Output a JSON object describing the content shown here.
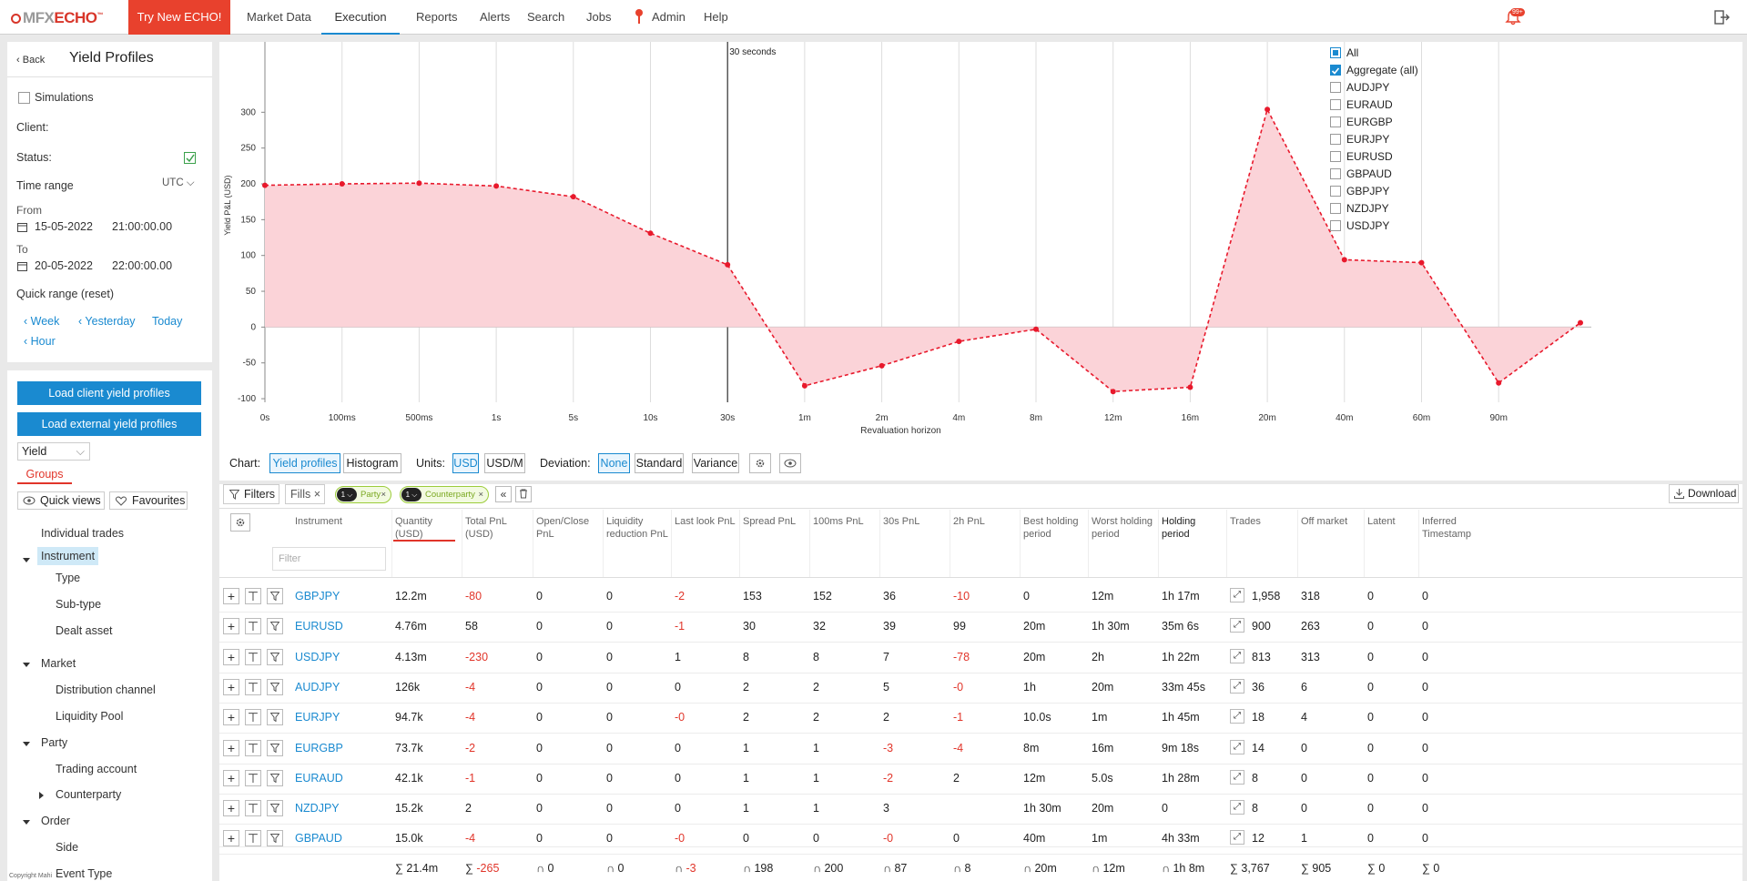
{
  "app": {
    "logo_prefix": "MFX",
    "logo_name": "ECHO",
    "logo_tm": "™"
  },
  "topnav": {
    "try_new": "Try New ECHO!",
    "items": [
      "Market Data",
      "Execution",
      "Reports",
      "Alerts",
      "Search",
      "Jobs",
      "Admin",
      "Help"
    ],
    "active": "Execution",
    "notification_badge": "99+"
  },
  "sidebar": {
    "back": "Back",
    "title": "Yield Profiles",
    "simulations": "Simulations",
    "client": "Client:",
    "status": "Status:",
    "time_range": "Time range",
    "timezone": "UTC",
    "from_label": "From",
    "from_date": "15-05-2022",
    "from_time": "21:00:00.00",
    "to_label": "To",
    "to_date": "20-05-2022",
    "to_time": "22:00:00.00",
    "quick_range": "Quick range (reset)",
    "quick_links": [
      "Week",
      "Yesterday",
      "Today",
      "Hour"
    ],
    "load_client": "Load client yield profiles",
    "load_external": "Load external yield profiles",
    "mode_select": "Yield",
    "groups_tab": "Groups",
    "quick_views": "Quick views",
    "favourites": "Favourites",
    "tree": {
      "individual_trades": "Individual trades",
      "instrument": "Instrument",
      "type": "Type",
      "sub_type": "Sub-type",
      "dealt_asset": "Dealt asset",
      "market": "Market",
      "distribution_channel": "Distribution channel",
      "liquidity_pool": "Liquidity Pool",
      "party": "Party",
      "trading_account": "Trading account",
      "counterparty": "Counterparty",
      "order": "Order",
      "side": "Side",
      "event_type": "Event Type"
    },
    "copyright": "Copyright Mahi"
  },
  "chart_toolbar": {
    "chart_label": "Chart:",
    "yield_profiles": "Yield profiles",
    "histogram": "Histogram",
    "units_label": "Units:",
    "usd": "USD",
    "usd_m": "USD/M",
    "deviation_label": "Deviation:",
    "none": "None",
    "standard": "Standard",
    "variance": "Variance"
  },
  "chart_data": {
    "type": "area",
    "ylabel": "Yield P&L (USD)",
    "xlabel": "Revaluation horizon",
    "categories": [
      "0s",
      "100ms",
      "500ms",
      "1s",
      "5s",
      "10s",
      "30s",
      "1m",
      "2m",
      "4m",
      "8m",
      "12m",
      "16m",
      "20m",
      "40m",
      "60m",
      "90m"
    ],
    "yticks": [
      300,
      250,
      200,
      150,
      100,
      50,
      0,
      -50,
      -100
    ],
    "ylim": [
      -100,
      300
    ],
    "marker_label": "30 seconds",
    "marker_category": "30s",
    "series": [
      {
        "name": "Aggregate (all)",
        "color": "#e8192c",
        "values": [
          198,
          200,
          201,
          197,
          182,
          131,
          87,
          -82,
          -54,
          -20,
          -3,
          -90,
          -84,
          304,
          94,
          90,
          -78
        ]
      }
    ],
    "last_point": 6,
    "legend": {
      "placement": "top-right",
      "items": [
        {
          "label": "All",
          "checked": "partial"
        },
        {
          "label": "Aggregate (all)",
          "checked": "yes"
        },
        {
          "label": "AUDJPY",
          "checked": "no"
        },
        {
          "label": "EURAUD",
          "checked": "no"
        },
        {
          "label": "EURGBP",
          "checked": "no"
        },
        {
          "label": "EURJPY",
          "checked": "no"
        },
        {
          "label": "EURUSD",
          "checked": "no"
        },
        {
          "label": "GBPAUD",
          "checked": "no"
        },
        {
          "label": "GBPJPY",
          "checked": "no"
        },
        {
          "label": "NZDJPY",
          "checked": "no"
        },
        {
          "label": "USDJPY",
          "checked": "no"
        }
      ]
    }
  },
  "grid_toolbar": {
    "filters": "Filters",
    "fills": "Fills",
    "party_chip": "Party",
    "counterparty_chip": "Counterparty",
    "chip_count": "1",
    "download": "Download",
    "filter_placeholder": "Filter"
  },
  "table": {
    "headers": [
      "Instrument",
      "Quantity (USD)",
      "Total PnL (USD)",
      "Open/Close PnL",
      "Liquidity reduction PnL",
      "Last look PnL",
      "Spread PnL",
      "100ms PnL",
      "30s PnL",
      "2h PnL",
      "Best holding period",
      "Worst holding period",
      "Holding period",
      "Trades",
      "Off market",
      "Latent",
      "Inferred Timestamp"
    ],
    "rows": [
      [
        "GBPJPY",
        "12.2m",
        "-80",
        "0",
        "0",
        "-2",
        "153",
        "152",
        "36",
        "-10",
        "0",
        "12m",
        "1h 17m",
        "1,958",
        "318",
        "0",
        "0"
      ],
      [
        "EURUSD",
        "4.76m",
        "58",
        "0",
        "0",
        "-1",
        "30",
        "32",
        "39",
        "99",
        "20m",
        "1h 30m",
        "35m 6s",
        "900",
        "263",
        "0",
        "0"
      ],
      [
        "USDJPY",
        "4.13m",
        "-230",
        "0",
        "0",
        "1",
        "8",
        "8",
        "7",
        "-78",
        "20m",
        "2h",
        "1h 22m",
        "813",
        "313",
        "0",
        "0"
      ],
      [
        "AUDJPY",
        "126k",
        "-4",
        "0",
        "0",
        "0",
        "2",
        "2",
        "5",
        "-0",
        "1h",
        "20m",
        "33m 45s",
        "36",
        "6",
        "0",
        "0"
      ],
      [
        "EURJPY",
        "94.7k",
        "-4",
        "0",
        "0",
        "-0",
        "2",
        "2",
        "2",
        "-1",
        "10.0s",
        "1m",
        "1h 45m",
        "18",
        "4",
        "0",
        "0"
      ],
      [
        "EURGBP",
        "73.7k",
        "-2",
        "0",
        "0",
        "0",
        "1",
        "1",
        "-3",
        "-4",
        "8m",
        "16m",
        "9m 18s",
        "14",
        "0",
        "0",
        "0"
      ],
      [
        "EURAUD",
        "42.1k",
        "-1",
        "0",
        "0",
        "0",
        "1",
        "1",
        "-2",
        "2",
        "12m",
        "5.0s",
        "1h 28m",
        "8",
        "0",
        "0",
        "0"
      ],
      [
        "NZDJPY",
        "15.2k",
        "2",
        "0",
        "0",
        "0",
        "1",
        "1",
        "3",
        "",
        "1h 30m",
        "20m",
        "0",
        "8",
        "0",
        "0",
        "0"
      ],
      [
        "GBPAUD",
        "15.0k",
        "-4",
        "0",
        "0",
        "-0",
        "0",
        "0",
        "-0",
        "0",
        "40m",
        "1m",
        "4h 33m",
        "12",
        "1",
        "0",
        "0"
      ]
    ],
    "totals": [
      "∑ 21.4m",
      "∑ -265",
      "∩ 0",
      "∩ 0",
      "∩ -3",
      "∩ 198",
      "∩ 200",
      "∩ 87",
      "∩ 8",
      "∩ 20m",
      "∩ 12m",
      "∩ 1h 8m",
      "∑ 3,767",
      "∑ 905",
      "∑ 0",
      "∑ 0"
    ]
  }
}
